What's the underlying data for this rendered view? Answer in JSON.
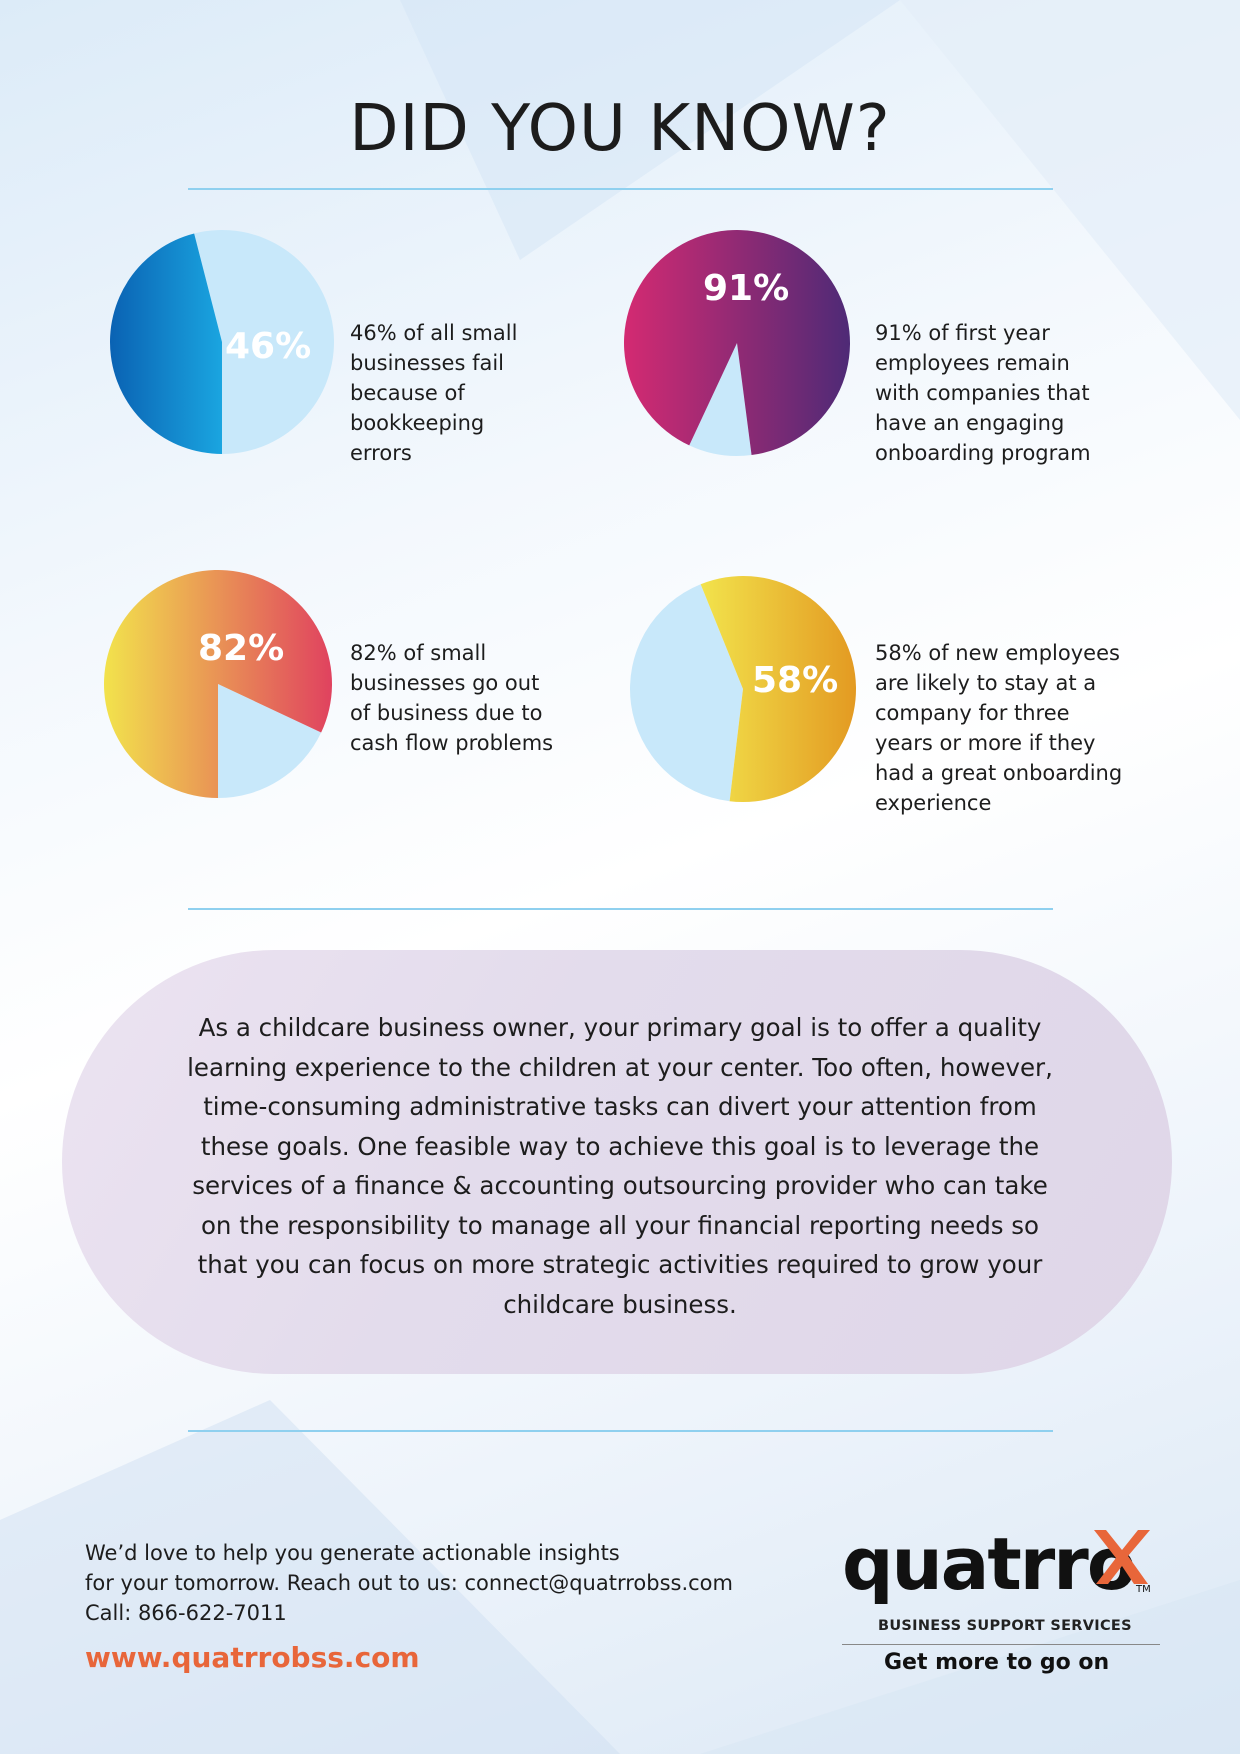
{
  "header": {
    "title": "DID YOU KNOW?"
  },
  "stats": [
    {
      "value_label": "46%",
      "percent": 46,
      "text": "46% of all small businesses fail because of bookkeeping errors",
      "lines": [
        "46% of all small",
        "businesses fail",
        "because of",
        "bookkeeping",
        "errors"
      ],
      "colors": [
        "#0a62b3",
        "#1aa5e0"
      ]
    },
    {
      "value_label": "91%",
      "percent": 91,
      "text": "91% of first year employees remain with companies that have an engaging onboarding program",
      "lines": [
        "91% of first year",
        "employees remain",
        "with companies that",
        "have an engaging",
        "onboarding program"
      ],
      "colors": [
        "#d42a72",
        "#4e2a76"
      ]
    },
    {
      "value_label": "82%",
      "percent": 82,
      "text": "82% of small businesses go out of business due to cash flow problems",
      "lines": [
        "82% of small",
        "businesses go out",
        "of business due to",
        "cash flow problems"
      ],
      "colors": [
        "#f2e34c",
        "#e0425f"
      ]
    },
    {
      "value_label": "58%",
      "percent": 58,
      "text": "58% of new employees are likely to stay at a company for three years or more if they had a great onboarding experience",
      "lines": [
        "58% of new employees",
        "are likely to stay at a",
        "company for three",
        "years or more if they",
        "had a great onboarding",
        "experience"
      ],
      "colors": [
        "#f2e34c",
        "#e39a22"
      ]
    }
  ],
  "pie_remainder_color": "#c8e8fa",
  "callout": {
    "lines": [
      "As a childcare business owner, your primary goal is to offer a quality",
      "learning experience to the children at your center. Too often, however,",
      "time-consuming administrative tasks can divert your attention from",
      "these goals. One feasible way to achieve this goal is to leverage the",
      "services of a finance & accounting outsourcing provider who can take",
      "on the responsibility to manage all your financial reporting needs so",
      "that you can focus on more strategic activities required to grow your",
      "childcare business."
    ]
  },
  "contact": {
    "line1": "We’d love to help you generate actionable insights",
    "line2": "for your tomorrow. Reach out to us: connect@quatrrobss.com",
    "line3": "Call: 866-622-7011",
    "website": "www.quatrrobss.com"
  },
  "logo": {
    "name": "quatrro",
    "trademark": "TM",
    "subtitle": "BUSINESS SUPPORT SERVICES",
    "tagline": "Get more to go on",
    "accent_color": "#e8663a"
  }
}
